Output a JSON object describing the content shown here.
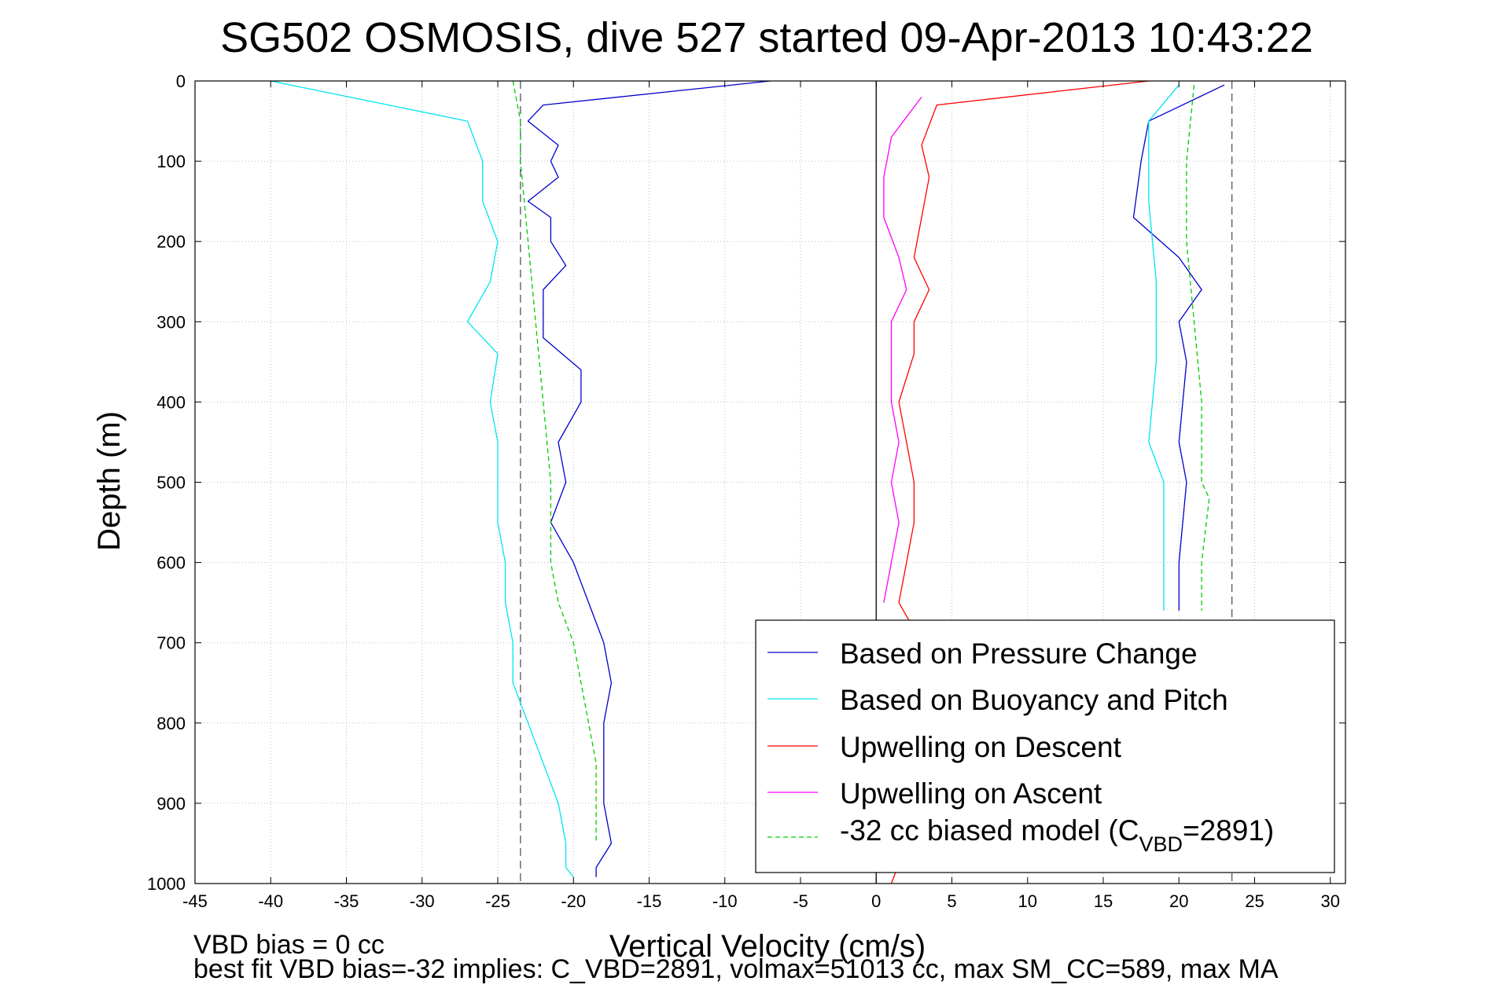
{
  "chart_data": {
    "type": "line",
    "title": "SG502 OSMOSIS, dive 527 started 09-Apr-2013 10:43:22",
    "xlabel": "Vertical Velocity (cm/s)",
    "ylabel": "Depth (m)",
    "xlim": [
      -45,
      31
    ],
    "ylim": [
      0,
      1000
    ],
    "y_reversed": true,
    "grid": true,
    "x_ticks": [
      "-45",
      "-40",
      "-35",
      "-30",
      "-25",
      "-20",
      "-15",
      "-10",
      "-5",
      "0",
      "5",
      "10",
      "15",
      "20",
      "25",
      "30"
    ],
    "y_ticks": [
      "0",
      "100",
      "200",
      "300",
      "400",
      "500",
      "600",
      "700",
      "800",
      "900",
      "1000"
    ],
    "reference_lines": [
      {
        "x": -23.5,
        "style": "dashed",
        "color": "#555555"
      },
      {
        "x": 23.5,
        "style": "dashed",
        "color": "#555555"
      },
      {
        "x": 0,
        "style": "solid",
        "color": "#000000"
      }
    ],
    "legend": {
      "placement": "lower-right",
      "entries": [
        {
          "label": "Based on Pressure Change",
          "color": "#0000cc",
          "dash": false
        },
        {
          "label": "Based on Buoyancy and Pitch",
          "color": "#00e5ee",
          "dash": false
        },
        {
          "label": "Upwelling on Descent",
          "color": "#ff0000",
          "dash": false
        },
        {
          "label": "Upwelling on Ascent",
          "color": "#ff00ff",
          "dash": false
        },
        {
          "label_main": "-32 cc biased model (C",
          "label_sub": "VBD",
          "label_end": "=2891)",
          "color": "#00cc00",
          "dash": true
        }
      ]
    },
    "series": [
      {
        "name": "Based on Pressure Change (descent)",
        "color": "#0000cc",
        "dashed": false,
        "x": [
          -7,
          -22,
          -23,
          -21,
          -21.5,
          -21,
          -23,
          -21.5,
          -21.5,
          -20.5,
          -22,
          -22,
          -22,
          -19.5,
          -19.5,
          -21,
          -20.5,
          -21.5,
          -20,
          -19,
          -18,
          -17.5,
          -18,
          -18,
          -18,
          -17.5,
          -18.5,
          -18.5
        ],
        "y": [
          0,
          30,
          50,
          80,
          100,
          120,
          150,
          170,
          200,
          230,
          260,
          290,
          320,
          360,
          400,
          450,
          500,
          550,
          600,
          650,
          700,
          750,
          800,
          850,
          900,
          950,
          980,
          992
        ]
      },
      {
        "name": "Based on Buoyancy and Pitch (descent)",
        "color": "#00e5ee",
        "dashed": false,
        "x": [
          -40,
          -27,
          -26,
          -26,
          -25,
          -25.5,
          -27,
          -25,
          -25.5,
          -25,
          -25,
          -25,
          -24.5,
          -24.5,
          -24,
          -24,
          -23,
          -22,
          -21,
          -20.5,
          -20.5,
          -20
        ],
        "y": [
          0,
          50,
          100,
          150,
          200,
          250,
          300,
          340,
          400,
          450,
          500,
          550,
          600,
          650,
          700,
          750,
          800,
          850,
          900,
          950,
          980,
          992
        ]
      },
      {
        "name": "Upwelling on Descent",
        "color": "#ff0000",
        "dashed": false,
        "x": [
          18,
          4,
          3,
          3.5,
          3,
          2.5,
          3.5,
          2.5,
          2.5,
          1.5,
          2,
          2.5,
          2.5,
          2,
          1.5,
          3,
          4,
          4.5,
          2,
          1
        ],
        "y": [
          0,
          30,
          80,
          120,
          170,
          220,
          260,
          300,
          340,
          400,
          450,
          500,
          550,
          600,
          650,
          700,
          800,
          850,
          950,
          1000
        ]
      },
      {
        "name": "Upwelling on Ascent",
        "color": "#ff00ff",
        "dashed": false,
        "x": [
          3,
          1,
          0.5,
          0.5,
          1.5,
          2,
          1,
          1,
          1,
          1.5,
          1,
          1.5,
          1,
          0.5
        ],
        "y": [
          20,
          70,
          120,
          170,
          220,
          260,
          300,
          340,
          400,
          450,
          500,
          550,
          600,
          650
        ]
      },
      {
        "name": "Based on Pressure Change (ascent)",
        "color": "#0000cc",
        "dashed": false,
        "x": [
          23,
          18,
          17.5,
          17,
          20,
          21.5,
          20,
          20.5,
          20,
          20.5,
          20,
          20
        ],
        "y": [
          5,
          50,
          100,
          170,
          220,
          260,
          300,
          350,
          450,
          500,
          600,
          660
        ]
      },
      {
        "name": "Based on Buoyancy and Pitch (ascent)",
        "color": "#00e5ee",
        "dashed": false,
        "x": [
          20,
          18,
          18,
          18.5,
          18.5,
          18,
          19,
          19,
          19,
          19
        ],
        "y": [
          5,
          50,
          150,
          250,
          350,
          450,
          500,
          550,
          600,
          660
        ]
      },
      {
        "name": "-32 cc biased model (descent)",
        "color": "#00cc00",
        "dashed": true,
        "x": [
          -24,
          -23.5,
          -23.5,
          -23,
          -22.5,
          -22,
          -21.5,
          -21.5,
          -21,
          -20,
          -19.5,
          -19,
          -18.5,
          -18.5,
          -18.5
        ],
        "y": [
          0,
          50,
          100,
          200,
          300,
          400,
          500,
          600,
          650,
          700,
          750,
          800,
          850,
          900,
          950
        ]
      },
      {
        "name": "-32 cc biased model (ascent)",
        "color": "#00cc00",
        "dashed": true,
        "x": [
          21,
          20.5,
          20.5,
          21,
          21.5,
          21.5,
          22,
          21.5,
          21.5
        ],
        "y": [
          5,
          100,
          200,
          300,
          400,
          500,
          520,
          600,
          660
        ]
      }
    ]
  },
  "footer": {
    "line1": "VBD bias = 0 cc",
    "line2": "best fit VBD bias=-32 implies: C_VBD=2891, volmax=51013 cc, max SM_CC=589, max MA"
  }
}
